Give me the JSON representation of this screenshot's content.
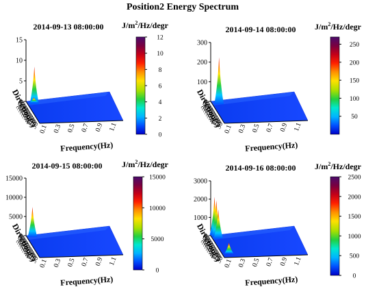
{
  "figure": {
    "title": "Position2 Energy Spectrum"
  },
  "chart_data": [
    {
      "type": "surface3d",
      "title": "2014-09-13 08:00:00",
      "colorbar_label_base": "J/m",
      "colorbar_label_exp": "2",
      "colorbar_label_rest": "/Hz/degr",
      "colorbar_ticks": [
        "0",
        "2",
        "4",
        "6",
        "8",
        "10",
        "12"
      ],
      "colorbar_range": [
        0,
        12
      ],
      "z_ticks": [
        "0",
        "5",
        "10",
        "15"
      ],
      "z_range": [
        0,
        15
      ],
      "x_label": "Frequency(Hz)",
      "x_ticks": [
        "0.1",
        "0.3",
        "0.5",
        "0.7",
        "0.9",
        "1.1"
      ],
      "y_label": "Direction(°)",
      "y_ticks": [
        "30",
        "60",
        "90",
        "120",
        "150",
        "180",
        "210",
        "240",
        "270",
        "300",
        "330",
        "360"
      ],
      "peaks": [
        {
          "frequency": 0.08,
          "direction": 300,
          "value": 9.2
        },
        {
          "frequency": 0.09,
          "direction": 330,
          "value": 1.2
        }
      ]
    },
    {
      "type": "surface3d",
      "title": "2014-09-14 08:00:00",
      "colorbar_label_base": "J/m",
      "colorbar_label_exp": "2",
      "colorbar_label_rest": "/Hz/degr",
      "colorbar_ticks": [
        "50",
        "100",
        "150",
        "200",
        "250"
      ],
      "colorbar_range": [
        0,
        270
      ],
      "z_ticks": [
        "0",
        "100",
        "200",
        "300"
      ],
      "z_range": [
        0,
        300
      ],
      "x_label": "Frequency(Hz)",
      "x_ticks": [
        "0.1",
        "0.3",
        "0.5",
        "0.7",
        "0.9",
        "1.1"
      ],
      "y_label": "Direction(°)",
      "y_ticks": [
        "30",
        "60",
        "90",
        "120",
        "150",
        "180",
        "210",
        "240",
        "270",
        "300",
        "330",
        "360"
      ],
      "peaks": [
        {
          "frequency": 0.08,
          "direction": 300,
          "value": 240
        }
      ]
    },
    {
      "type": "surface3d",
      "title": "2014-09-15 08:00:00",
      "colorbar_label_base": "J/m",
      "colorbar_label_exp": "2",
      "colorbar_label_rest": "/Hz/degr",
      "colorbar_ticks": [
        "0",
        "5000",
        "10000",
        "15000"
      ],
      "colorbar_range": [
        0,
        15000
      ],
      "z_ticks": [
        "0",
        "5000",
        "10000",
        "15000"
      ],
      "z_range": [
        0,
        15000
      ],
      "x_label": "Frequency(Hz)",
      "x_ticks": [
        "0.1",
        "0.3",
        "0.5",
        "0.7",
        "0.9",
        "1.1"
      ],
      "y_label": "Direction(°)",
      "y_ticks": [
        "30",
        "60",
        "90",
        "120",
        "150",
        "180",
        "210",
        "240",
        "270",
        "300",
        "330",
        "360"
      ],
      "peaks": [
        {
          "frequency": 0.07,
          "direction": 330,
          "value": 7800
        }
      ]
    },
    {
      "type": "surface3d",
      "title": "2014-09-16 08:00:00",
      "colorbar_label_base": "J/m",
      "colorbar_label_exp": "2",
      "colorbar_label_rest": "/Hz/degr",
      "colorbar_ticks": [
        "0",
        "500",
        "1000",
        "1500",
        "2000",
        "2500"
      ],
      "colorbar_range": [
        0,
        2500
      ],
      "z_ticks": [
        "0",
        "1000",
        "2000",
        "3000"
      ],
      "z_range": [
        0,
        3000
      ],
      "x_label": "Frequency(Hz)",
      "x_ticks": [
        "0.1",
        "0.3",
        "0.5",
        "0.7",
        "0.9",
        "1.1"
      ],
      "y_label": "Direction(°)",
      "y_ticks": [
        "30",
        "60",
        "90",
        "120",
        "150",
        "180",
        "210",
        "240",
        "270",
        "300",
        "330",
        "360"
      ],
      "peaks": [
        {
          "frequency": 0.05,
          "direction": 360,
          "value": 2100
        },
        {
          "frequency": 0.06,
          "direction": 330,
          "value": 2000
        },
        {
          "frequency": 0.07,
          "direction": 300,
          "value": 1600
        },
        {
          "frequency": 0.09,
          "direction": 60,
          "value": 600
        }
      ]
    }
  ],
  "colormap": [
    "#0000c8",
    "#0050ff",
    "#00b4ff",
    "#00e8d0",
    "#22d040",
    "#a8e000",
    "#ffe000",
    "#ff9000",
    "#ff2000",
    "#c40018",
    "#7a0040",
    "#4a0c6c"
  ]
}
